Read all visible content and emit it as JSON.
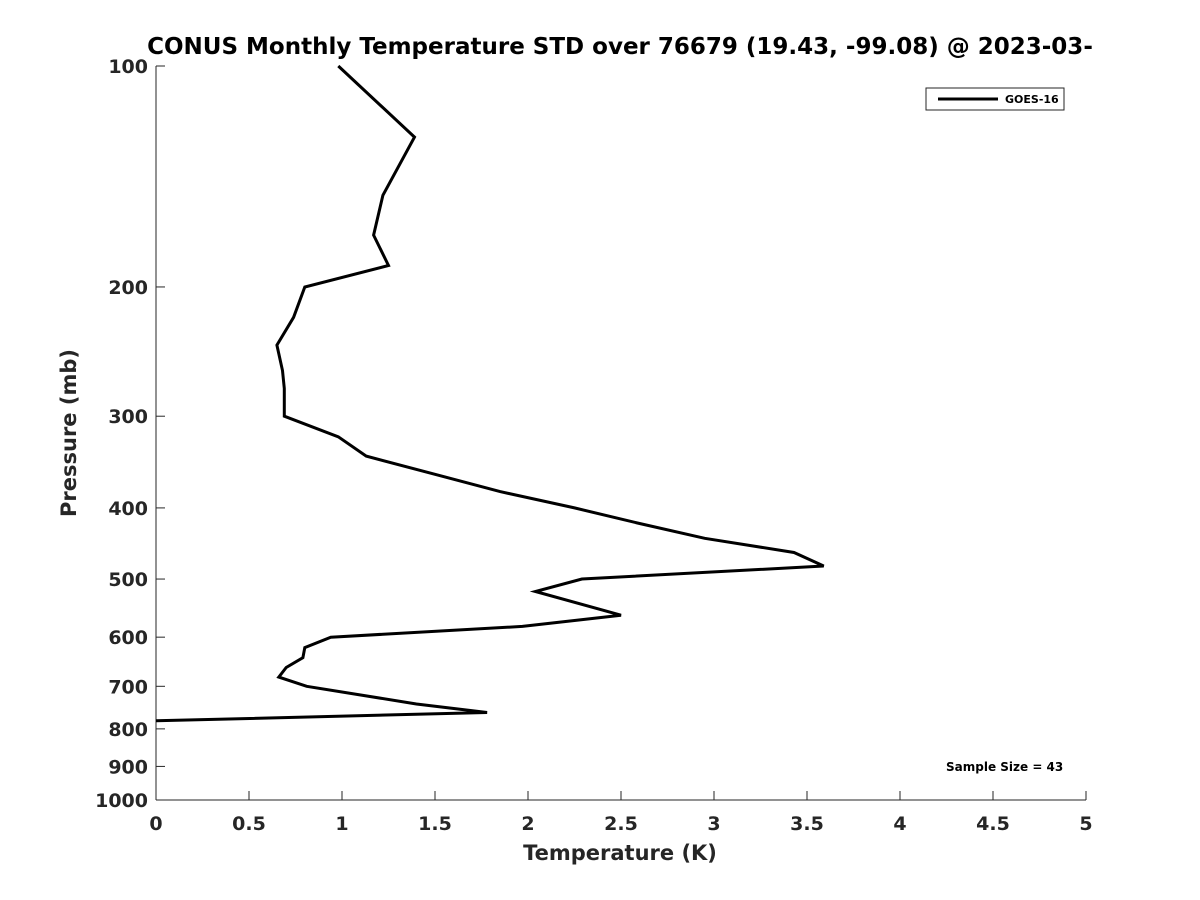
{
  "chart_data": {
    "type": "line",
    "title": "CONUS Monthly Temperature STD over 76679 (19.43, -99.08) @ 2023-03-",
    "xlabel": "Temperature (K)",
    "ylabel": "Pressure (mb)",
    "xlim": [
      0,
      5
    ],
    "ylim": [
      100,
      1000
    ],
    "y_scale": "log",
    "y_reversed": true,
    "x_ticks": [
      "0",
      "0.5",
      "1",
      "1.5",
      "2",
      "2.5",
      "3",
      "3.5",
      "4",
      "4.5",
      "5"
    ],
    "y_ticks": [
      "100",
      "200",
      "300",
      "400",
      "500",
      "600",
      "700",
      "800",
      "900",
      "1000"
    ],
    "grid": false,
    "legend_position": "top-right",
    "annotation": "Sample Size = 43",
    "series": [
      {
        "name": "GOES-16",
        "color": "#000000",
        "points": [
          {
            "x": 0.98,
            "p": 100
          },
          {
            "x": 1.39,
            "p": 125
          },
          {
            "x": 1.22,
            "p": 150
          },
          {
            "x": 1.17,
            "p": 170
          },
          {
            "x": 1.25,
            "p": 187
          },
          {
            "x": 0.8,
            "p": 200
          },
          {
            "x": 0.74,
            "p": 220
          },
          {
            "x": 0.65,
            "p": 240
          },
          {
            "x": 0.68,
            "p": 260
          },
          {
            "x": 0.69,
            "p": 275
          },
          {
            "x": 0.69,
            "p": 300
          },
          {
            "x": 0.98,
            "p": 320
          },
          {
            "x": 1.13,
            "p": 340
          },
          {
            "x": 1.5,
            "p": 360
          },
          {
            "x": 1.85,
            "p": 380
          },
          {
            "x": 2.25,
            "p": 400
          },
          {
            "x": 2.6,
            "p": 420
          },
          {
            "x": 2.95,
            "p": 440
          },
          {
            "x": 3.43,
            "p": 460
          },
          {
            "x": 3.59,
            "p": 480
          },
          {
            "x": 2.29,
            "p": 500
          },
          {
            "x": 2.04,
            "p": 520
          },
          {
            "x": 2.5,
            "p": 560
          },
          {
            "x": 1.97,
            "p": 580
          },
          {
            "x": 0.94,
            "p": 600
          },
          {
            "x": 0.8,
            "p": 620
          },
          {
            "x": 0.79,
            "p": 640
          },
          {
            "x": 0.7,
            "p": 660
          },
          {
            "x": 0.66,
            "p": 680
          },
          {
            "x": 0.81,
            "p": 700
          },
          {
            "x": 1.4,
            "p": 740
          },
          {
            "x": 1.78,
            "p": 760
          },
          {
            "x": 0.0,
            "p": 780
          }
        ]
      }
    ]
  }
}
